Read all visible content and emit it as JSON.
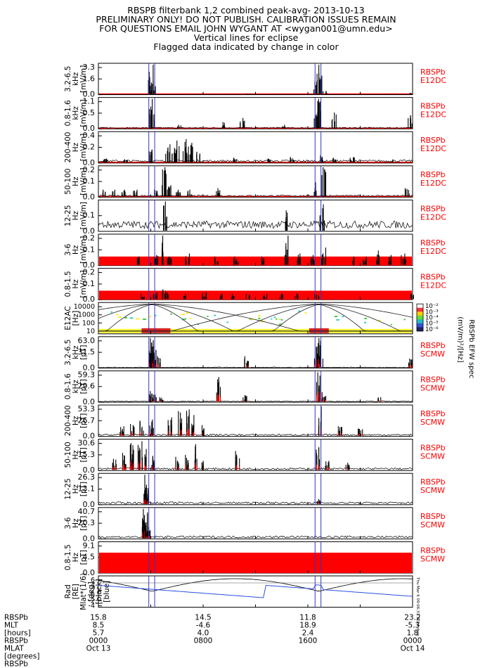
{
  "header": {
    "title": "RBSPB filterbank 1,2 combined peak-avg- 2013-10-13",
    "line2": "PRELIMINARY ONLY! DO NOT PUBLISH. CALIBRATION ISSUES REMAIN",
    "line3": "FOR QUESTIONS EMAIL JOHN WYGANT AT <wygan001@umn.edu>",
    "line4": "Vertical lines for eclipse",
    "line5": "Flagged data indicated by change in color"
  },
  "colors": {
    "data": "#000000",
    "flag": "#ff0000",
    "eclipse": "#3333cc",
    "panel_label": "#ff0000",
    "rad": "#000000",
    "mlat": "#2b4de0"
  },
  "chart_data": {
    "type": "line",
    "time_range": [
      "2013-10-13 0000",
      "2013-10-14 0000"
    ],
    "eclipse_hours": [
      3.85,
      4.3,
      16.55,
      17.0
    ],
    "panels": [
      {
        "id": "e12dc-3-6k",
        "ylabel": [
          "3.2-6.5",
          "kHz",
          "[mV/m]"
        ],
        "ticks": [
          "3.3",
          "1.6",
          "0.0"
        ],
        "ymax": 3.3,
        "source": [
          "RBSPb",
          "E12DC"
        ],
        "flag_band": false,
        "baseline_red": true,
        "events": [
          [
            3.9,
            1.6
          ],
          [
            4.05,
            3.3
          ],
          [
            4.2,
            1.2
          ],
          [
            16.6,
            1.5
          ],
          [
            16.8,
            3.3
          ],
          [
            17.0,
            2.1
          ],
          [
            17.3,
            0.4
          ],
          [
            11.5,
            0.05
          ],
          [
            23.9,
            0.2
          ]
        ],
        "noise": 0.02
      },
      {
        "id": "e12dc-08-16k",
        "ylabel": [
          "0.8-1.6",
          "kHz",
          "[mV/m]"
        ],
        "ticks": [
          "1.1",
          "0.5",
          "0.0"
        ],
        "ymax": 1.1,
        "source": [
          "RBSPb",
          "E12DC"
        ],
        "flag_band": false,
        "baseline_red": true,
        "events": [
          [
            4.05,
            1.1
          ],
          [
            4.15,
            0.7
          ],
          [
            16.85,
            1.1
          ],
          [
            16.6,
            0.6
          ],
          [
            11.0,
            0.4
          ],
          [
            9.5,
            0.25
          ],
          [
            6.2,
            0.15
          ],
          [
            18.0,
            0.6
          ],
          [
            14.2,
            0.15
          ],
          [
            23.8,
            0.5
          ]
        ],
        "noise": 0.04
      },
      {
        "id": "e12dc-200-400",
        "ylabel": [
          "200-400",
          "Hz",
          "[mV/m]"
        ],
        "ticks": [
          "0.4",
          "0.2",
          "0.0"
        ],
        "ymax": 0.4,
        "source": [
          "RBSPb",
          "E12DC"
        ],
        "flag_band": false,
        "baseline_red": true,
        "events": [
          [
            5.3,
            0.25
          ],
          [
            6.0,
            0.3
          ],
          [
            6.6,
            0.32
          ],
          [
            7.2,
            0.27
          ],
          [
            5.8,
            0.2
          ],
          [
            6.9,
            0.22
          ],
          [
            7.6,
            0.15
          ],
          [
            4.05,
            0.18
          ],
          [
            0.5,
            0.06
          ],
          [
            2.1,
            0.05
          ],
          [
            10.5,
            0.07
          ],
          [
            13.0,
            0.06
          ],
          [
            14.8,
            0.08
          ],
          [
            17.0,
            0.1
          ],
          [
            18.0,
            0.07
          ],
          [
            19.4,
            0.08
          ],
          [
            22.5,
            0.05
          ]
        ],
        "noise": 0.03
      },
      {
        "id": "e12dc-50-100",
        "ylabel": [
          "50-100",
          "Hz",
          "[mV/m]"
        ],
        "ticks": [
          "0.2",
          "0.1",
          "0.0"
        ],
        "ymax": 0.2,
        "source": [
          "RBSPb",
          "E12DC"
        ],
        "flag_band": false,
        "baseline_red": true,
        "events": [
          [
            0.4,
            0.05
          ],
          [
            1.2,
            0.05
          ],
          [
            1.9,
            0.05
          ],
          [
            2.8,
            0.05
          ],
          [
            4.4,
            0.05
          ],
          [
            5.0,
            0.2
          ],
          [
            5.4,
            0.08
          ],
          [
            6.1,
            0.05
          ],
          [
            7.0,
            0.05
          ],
          [
            9.1,
            0.06
          ],
          [
            16.5,
            0.1
          ],
          [
            17.2,
            0.2
          ],
          [
            23.6,
            0.06
          ]
        ],
        "noise": 0.01
      },
      {
        "id": "e12dc-12-25",
        "ylabel": [
          "12-25",
          "Hz",
          "[mV/m]"
        ],
        "ticks": [
          "0.1",
          "0.0"
        ],
        "ymax": 0.1,
        "source": [
          "RBSPb",
          "E12DC"
        ],
        "flag_band": false,
        "baseline_red": false,
        "events": [
          [
            5.1,
            0.1
          ],
          [
            17.1,
            0.09
          ],
          [
            14.3,
            0.07
          ]
        ],
        "noise": 0.025
      },
      {
        "id": "e12dc-3-6",
        "ylabel": [
          "3-6",
          "Hz",
          "[mV/m]"
        ],
        "ticks": [
          "0.2",
          "0.1",
          "0.0"
        ],
        "ymax": 0.2,
        "source": [
          "RBSPb",
          "E12DC"
        ],
        "flag_band": true,
        "baseline_red": false,
        "events": [
          [
            3.0,
            0.06
          ],
          [
            4.4,
            0.07
          ],
          [
            5.0,
            0.2
          ],
          [
            5.4,
            0.06
          ],
          [
            6.8,
            0.08
          ],
          [
            9.0,
            0.06
          ],
          [
            10.5,
            0.06
          ],
          [
            12.6,
            0.06
          ],
          [
            14.4,
            0.2
          ],
          [
            15.3,
            0.08
          ],
          [
            16.4,
            0.07
          ],
          [
            17.2,
            0.12
          ],
          [
            19.5,
            0.06
          ],
          [
            20.3,
            0.06
          ],
          [
            21.4,
            0.1
          ],
          [
            22.3,
            0.07
          ],
          [
            23.3,
            0.08
          ]
        ],
        "noise": 0.0
      },
      {
        "id": "e12dc-08-15",
        "ylabel": [
          "0.8-1.5",
          "Hz",
          "[mV/m]"
        ],
        "ticks": [
          "0.2",
          "0.1",
          "0.0"
        ],
        "ymax": 0.2,
        "source": [
          "RBSPb",
          "E12DC"
        ],
        "flag_band": true,
        "baseline_red": false,
        "events": [
          [
            3.4,
            0.04
          ],
          [
            4.3,
            0.05
          ],
          [
            5.0,
            0.07
          ],
          [
            5.2,
            0.05
          ],
          [
            6.5,
            0.04
          ],
          [
            8.1,
            0.05
          ],
          [
            9.3,
            0.04
          ],
          [
            10.2,
            0.04
          ],
          [
            11.4,
            0.04
          ],
          [
            12.7,
            0.04
          ],
          [
            14.0,
            0.04
          ],
          [
            15.1,
            0.04
          ],
          [
            16.7,
            0.04
          ],
          [
            23.9,
            0.04
          ]
        ],
        "noise": 0.0
      },
      {
        "id": "e12ac-spec",
        "kind": "spectrogram",
        "ylabel": [
          "E12AC",
          "[Hz]"
        ],
        "ticks": [
          "10000",
          "1000",
          "100",
          "10"
        ],
        "colorbar_ticks": [
          "10⁻²",
          "10⁻³",
          "10⁻⁴",
          "10⁻⁵",
          "10⁻⁶"
        ],
        "colorbar_label": "(mV/m)²/[Hz]",
        "colorbar_title": "RBSPb EFW spec"
      },
      {
        "id": "scmw-3-6k",
        "ylabel": [
          "3.2-6.5",
          "kHz",
          "[pT]"
        ],
        "ticks": [
          "63.0",
          "31.5",
          "0.0"
        ],
        "ymax": 63,
        "source": [
          "RBSPb",
          "SCMW"
        ],
        "flag_band": false,
        "baseline_red": false,
        "events": [
          [
            3.95,
            45
          ],
          [
            4.1,
            63
          ],
          [
            4.3,
            38
          ],
          [
            4.6,
            25
          ],
          [
            16.6,
            45
          ],
          [
            16.85,
            63
          ],
          [
            17.0,
            35
          ],
          [
            11.3,
            25
          ],
          [
            23.8,
            20
          ]
        ],
        "noise": 1.5
      },
      {
        "id": "scmw-08-16k",
        "ylabel": [
          "0.8-1.6",
          "kHz",
          "[pT]"
        ],
        "ticks": [
          "59.3",
          "29.6",
          "0.0"
        ],
        "ymax": 59.3,
        "source": [
          "RBSPb",
          "SCMW"
        ],
        "flag_band": false,
        "baseline_red": false,
        "events": [
          [
            4.05,
            22
          ],
          [
            4.3,
            15
          ],
          [
            4.8,
            10
          ],
          [
            9.2,
            50
          ],
          [
            11.2,
            14
          ],
          [
            16.8,
            59.3
          ],
          [
            17.2,
            20
          ],
          [
            21.4,
            10
          ]
        ],
        "noise": 2.0
      },
      {
        "id": "scmw-200-400",
        "ylabel": [
          "200-400",
          "Hz",
          "[pT]"
        ],
        "ticks": [
          "53.3",
          "26.7",
          "0.0"
        ],
        "ymax": 53.3,
        "source": [
          "RBSPb",
          "SCMW"
        ],
        "flag_band": false,
        "baseline_red": false,
        "events": [
          [
            1.8,
            18
          ],
          [
            2.6,
            22
          ],
          [
            3.3,
            28
          ],
          [
            4.1,
            30
          ],
          [
            5.5,
            34
          ],
          [
            6.2,
            45
          ],
          [
            6.8,
            48
          ],
          [
            7.3,
            38
          ],
          [
            8.0,
            20
          ],
          [
            16.9,
            53
          ],
          [
            18.5,
            18
          ],
          [
            20.0,
            14
          ]
        ],
        "noise": 3.0
      },
      {
        "id": "scmw-50-100",
        "ylabel": [
          "50-100",
          "Hz",
          "[pT]"
        ],
        "ticks": [
          "30.6",
          "15.3",
          "0.0"
        ],
        "ymax": 30.6,
        "source": [
          "RBSPb",
          "SCMW"
        ],
        "flag_band": false,
        "baseline_red": false,
        "events": [
          [
            1.2,
            12
          ],
          [
            2.0,
            18
          ],
          [
            2.6,
            28
          ],
          [
            3.2,
            30
          ],
          [
            3.6,
            22
          ],
          [
            4.2,
            15
          ],
          [
            6.0,
            14
          ],
          [
            6.8,
            16
          ],
          [
            7.4,
            27
          ],
          [
            8.0,
            10
          ],
          [
            10.6,
            20
          ],
          [
            16.8,
            24
          ],
          [
            17.5,
            10
          ],
          [
            19.0,
            8
          ]
        ],
        "noise": 2.0
      },
      {
        "id": "scmw-12-25",
        "ylabel": [
          "12-25",
          "Hz",
          "[pT]"
        ],
        "ticks": [
          "26.3",
          "13.1",
          "0.0"
        ],
        "ymax": 26.3,
        "source": [
          "RBSPb",
          "SCMW"
        ],
        "flag_band": false,
        "baseline_red": false,
        "events": [
          [
            3.6,
            15
          ],
          [
            3.7,
            26.3
          ],
          [
            3.8,
            12
          ],
          [
            16.8,
            5
          ]
        ],
        "noise": 1.8
      },
      {
        "id": "scmw-3-6",
        "ylabel": [
          "3-6",
          "Hz",
          "[pT]"
        ],
        "ticks": [
          "40.7",
          "20.3",
          "0.0"
        ],
        "ymax": 40.7,
        "source": [
          "RBSPb",
          "SCMW"
        ],
        "flag_band": false,
        "baseline_red": false,
        "events": [
          [
            3.5,
            28
          ],
          [
            3.6,
            40.7
          ],
          [
            3.7,
            22
          ],
          [
            3.8,
            12
          ]
        ],
        "noise": 3.0
      },
      {
        "id": "scmw-08-15",
        "ylabel": [
          "0.8-1.5",
          "Hz",
          "[pT]"
        ],
        "ticks": [
          "9.1",
          "4.5",
          "0.0"
        ],
        "ymax": 9.1,
        "source": [
          "RBSPb",
          "SCMW"
        ],
        "flag_band": true,
        "band_level": 6.2,
        "baseline_red": false,
        "events": [],
        "noise": 0.0
      },
      {
        "id": "orbit",
        "kind": "orbit",
        "ylabel": [
          "Rad",
          "[RE]",
          "Mlat*(1/6)",
          "[deg]",
          "[black]",
          "[blue]"
        ],
        "ticks": [
          "6",
          "4",
          "2",
          "0",
          "-2",
          "-4"
        ],
        "stamp": "Thu Mar  6 09:06:33 2014 rbsp"
      }
    ]
  },
  "footer": {
    "row_labels": [
      "RBSPb",
      "MLT",
      "[hours]",
      "RBSPb",
      "MLAT",
      "[degrees]",
      "RBSPb"
    ],
    "columns": [
      {
        "hour": 0,
        "rad": "15.8",
        "mlt": "8.5",
        "mlat": "5.7",
        "time": "0000",
        "date": "Oct 13"
      },
      {
        "hour": 8,
        "rad": "14.5",
        "mlt": "-4.6",
        "mlat": "4.0",
        "time": "0800",
        "date": ""
      },
      {
        "hour": 16,
        "rad": "11.8",
        "mlt": "18.9",
        "mlat": "2.4",
        "time": "1600",
        "date": ""
      },
      {
        "hour": 24,
        "rad": "23.2",
        "mlt": "-5.3",
        "mlat": "1.8",
        "time": "0000",
        "date": "Oct 14"
      }
    ]
  }
}
